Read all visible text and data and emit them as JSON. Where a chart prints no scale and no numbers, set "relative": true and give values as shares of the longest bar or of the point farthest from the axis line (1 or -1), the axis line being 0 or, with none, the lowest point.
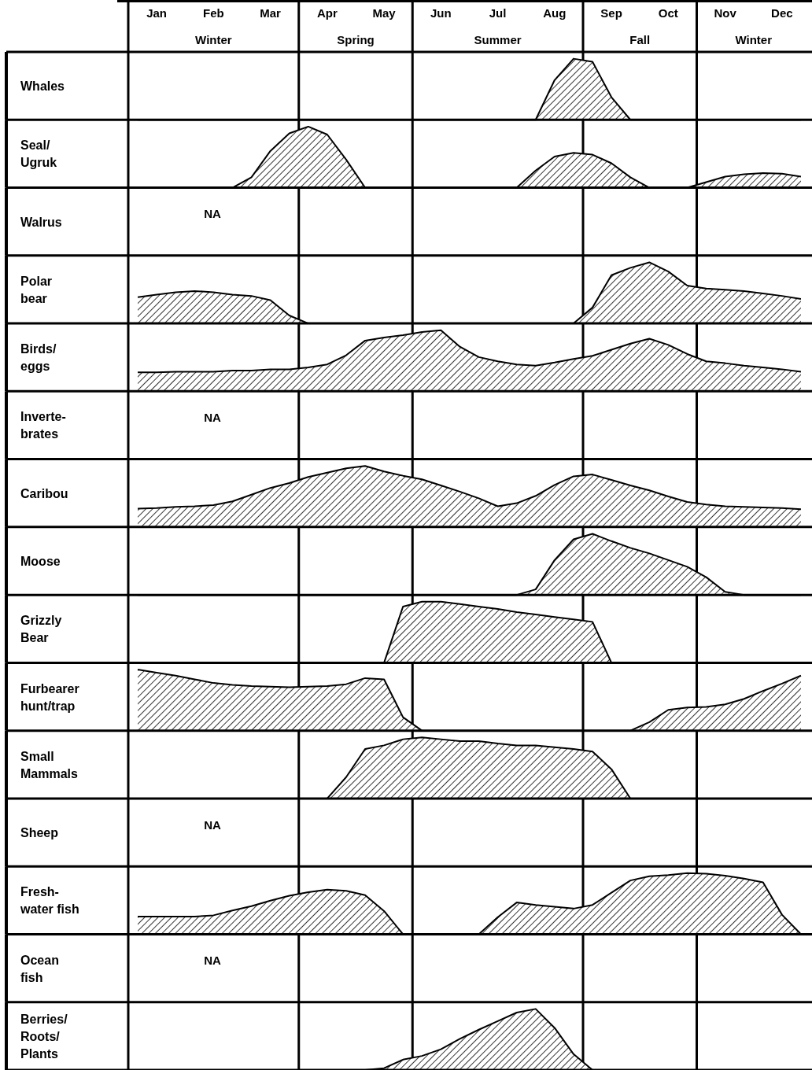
{
  "chart_data": [
    {
      "type": "area",
      "ylabel": "Whales",
      "relative": true,
      "tick_labels": "x",
      "categories": [
        null,
        "Jan",
        null,
        null,
        "Feb",
        null,
        null,
        "Mar",
        null,
        null,
        "Apr",
        null,
        null,
        "May",
        null,
        null,
        "Jun",
        null,
        null,
        "Jul",
        null,
        null,
        "Aug",
        null,
        null,
        "Sep",
        null,
        null,
        "Oct",
        null,
        null,
        "Nov",
        null,
        null,
        "Dec",
        null
      ],
      "annotations": [
        "Winter",
        "Spring",
        "Summer",
        "Fall",
        "Winter"
      ],
      "values": [
        0,
        0,
        0,
        0,
        0,
        0,
        0,
        0,
        0,
        0,
        0,
        0,
        0,
        0,
        0,
        0,
        0,
        0,
        0,
        0,
        0,
        0,
        0.65,
        1,
        0.95,
        0.37,
        0,
        0,
        0,
        0,
        0,
        0,
        0,
        0,
        0,
        0
      ]
    },
    {
      "type": "area",
      "ylabel": "Seal/\nUgruk",
      "relative": true,
      "values": [
        0,
        0,
        0,
        0,
        0,
        0,
        0.17,
        0.6,
        0.89,
        1,
        0.87,
        0.46,
        0,
        0,
        0,
        0,
        0,
        0,
        0,
        0,
        0,
        0.28,
        0.51,
        0.57,
        0.54,
        0.4,
        0.17,
        0,
        0,
        0,
        0.09,
        0.18,
        0.22,
        0.24,
        0.23,
        0.18
      ]
    },
    {
      "type": "other",
      "ylabel": "Walrus",
      "annotations": [
        "NA"
      ]
    },
    {
      "type": "area",
      "ylabel": "Polar\nbear",
      "relative": true,
      "values": [
        0.43,
        0.47,
        0.51,
        0.53,
        0.51,
        0.47,
        0.45,
        0.38,
        0.13,
        0,
        0,
        0,
        0,
        0,
        0,
        0,
        0,
        0,
        0,
        0,
        0,
        0,
        0,
        0,
        0.26,
        0.79,
        0.91,
        1,
        0.85,
        0.62,
        0.57,
        0.55,
        0.53,
        0.49,
        0.45,
        0.4
      ]
    },
    {
      "type": "area",
      "ylabel": "Birds/\neggs",
      "relative": true,
      "values": [
        0.31,
        0.31,
        0.32,
        0.32,
        0.32,
        0.34,
        0.34,
        0.36,
        0.36,
        0.39,
        0.44,
        0.59,
        0.83,
        0.88,
        0.92,
        0.97,
        1,
        0.73,
        0.56,
        0.49,
        0.44,
        0.42,
        0.47,
        0.53,
        0.58,
        0.68,
        0.78,
        0.86,
        0.76,
        0.61,
        0.49,
        0.46,
        0.42,
        0.39,
        0.36,
        0.32
      ]
    },
    {
      "type": "other",
      "ylabel": "Inverte-\nbrates",
      "annotations": [
        "NA"
      ]
    },
    {
      "type": "area",
      "ylabel": "Caribou",
      "relative": true,
      "values": [
        0.3,
        0.31,
        0.33,
        0.34,
        0.36,
        0.42,
        0.53,
        0.64,
        0.72,
        0.82,
        0.89,
        0.96,
        1,
        0.91,
        0.84,
        0.78,
        0.68,
        0.58,
        0.47,
        0.34,
        0.39,
        0.51,
        0.69,
        0.83,
        0.86,
        0.77,
        0.68,
        0.6,
        0.5,
        0.41,
        0.37,
        0.34,
        0.33,
        0.32,
        0.31,
        0.29
      ]
    },
    {
      "type": "area",
      "ylabel": "Moose",
      "relative": true,
      "values": [
        0,
        0,
        0,
        0,
        0,
        0,
        0,
        0,
        0,
        0,
        0,
        0,
        0,
        0,
        0,
        0,
        0,
        0,
        0,
        0,
        0,
        0.09,
        0.57,
        0.91,
        1,
        0.88,
        0.77,
        0.68,
        0.57,
        0.46,
        0.29,
        0.05,
        0,
        0,
        0,
        0
      ]
    },
    {
      "type": "area",
      "ylabel": "Grizzly\nBear",
      "relative": true,
      "values": [
        0,
        0,
        0,
        0,
        0,
        0,
        0,
        0,
        0,
        0,
        0,
        0,
        0,
        0,
        0.92,
        1,
        1,
        0.96,
        0.92,
        0.88,
        0.83,
        0.79,
        0.75,
        0.71,
        0.67,
        0,
        0,
        0,
        0,
        0,
        0,
        0,
        0,
        0,
        0,
        0
      ]
    },
    {
      "type": "area",
      "ylabel": "Furbearer\nhunt/trap",
      "relative": true,
      "values": [
        1,
        0.95,
        0.9,
        0.84,
        0.78,
        0.75,
        0.73,
        0.72,
        0.71,
        0.72,
        0.73,
        0.76,
        0.86,
        0.84,
        0.22,
        0,
        0,
        0,
        0,
        0,
        0,
        0,
        0,
        0,
        0,
        0,
        0,
        0.14,
        0.34,
        0.38,
        0.39,
        0.43,
        0.52,
        0.65,
        0.77,
        0.9
      ]
    },
    {
      "type": "area",
      "ylabel": "Small\nMammals",
      "relative": true,
      "values": [
        0,
        0,
        0,
        0,
        0,
        0,
        0,
        0,
        0,
        0,
        0,
        0.35,
        0.81,
        0.87,
        0.97,
        1,
        0.97,
        0.94,
        0.94,
        0.9,
        0.87,
        0.87,
        0.84,
        0.81,
        0.77,
        0.48,
        0,
        0,
        0,
        0,
        0,
        0,
        0,
        0,
        0,
        0
      ]
    },
    {
      "type": "other",
      "ylabel": "Sheep",
      "annotations": [
        "NA"
      ]
    },
    {
      "type": "area",
      "ylabel": "Fresh-\nwater fish",
      "relative": true,
      "values": [
        0.29,
        0.29,
        0.29,
        0.29,
        0.31,
        0.39,
        0.46,
        0.55,
        0.63,
        0.69,
        0.73,
        0.71,
        0.64,
        0.38,
        0,
        0,
        0,
        0,
        0,
        0.28,
        0.52,
        0.48,
        0.45,
        0.42,
        0.48,
        0.68,
        0.88,
        0.95,
        0.97,
        1,
        0.99,
        0.96,
        0.91,
        0.85,
        0.32,
        0
      ]
    },
    {
      "type": "other",
      "ylabel": "Ocean\nfish",
      "annotations": [
        "NA"
      ]
    },
    {
      "type": "area",
      "ylabel": "Berries/\nRoots/\nPlants",
      "relative": true,
      "values": [
        0,
        0,
        0,
        0,
        0,
        0,
        0,
        0,
        0,
        0,
        0,
        0,
        0,
        0.03,
        0.17,
        0.23,
        0.34,
        0.51,
        0.66,
        0.8,
        0.94,
        1,
        0.69,
        0.26,
        0,
        0,
        0,
        0,
        0,
        0,
        0,
        0,
        0,
        0,
        0,
        0
      ]
    }
  ]
}
